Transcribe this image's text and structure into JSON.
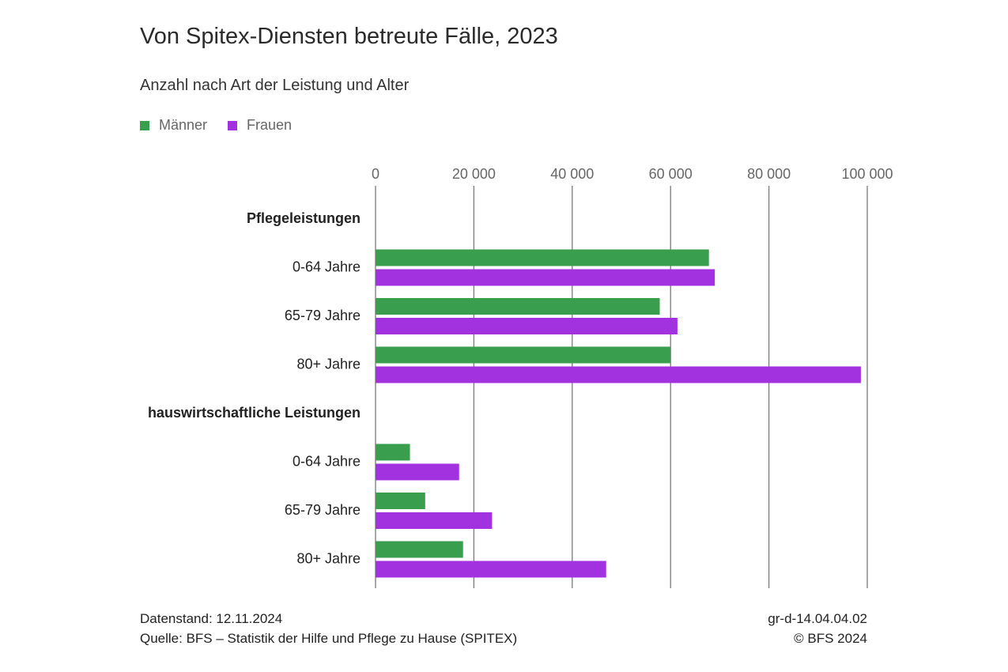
{
  "title": "Von Spitex-Diensten betreute Fälle, 2023",
  "subtitle": "Anzahl nach Art der Leistung und Alter",
  "legend": [
    {
      "label": "Männer",
      "color": "#3a9e4f"
    },
    {
      "label": "Frauen",
      "color": "#a232e0"
    }
  ],
  "footer": {
    "stand": "Datenstand: 12.11.2024",
    "source": "Quelle: BFS – Statistik der Hilfe und Pflege zu Hause (SPITEX)",
    "code": "gr-d-14.04.04.02",
    "copyright": "© BFS 2024"
  },
  "chart_data": {
    "type": "bar",
    "orientation": "horizontal",
    "xlim": [
      0,
      100000
    ],
    "ticks": [
      0,
      20000,
      40000,
      60000,
      80000,
      100000
    ],
    "tick_labels": [
      "0",
      "20 000",
      "40 000",
      "60 000",
      "80 000",
      "100 000"
    ],
    "grid": true,
    "legend_position": "top-left",
    "groups": [
      {
        "label": "Pflegeleistungen",
        "categories": [
          "0-64 Jahre",
          "65-79 Jahre",
          "80+ Jahre"
        ],
        "series": [
          {
            "name": "Männer",
            "values": [
              67800,
              57800,
              60000
            ]
          },
          {
            "name": "Frauen",
            "values": [
              69000,
              61400,
              98700
            ]
          }
        ]
      },
      {
        "label": "hauswirtschaftliche Leistungen",
        "categories": [
          "0-64 Jahre",
          "65-79 Jahre",
          "80+ Jahre"
        ],
        "series": [
          {
            "name": "Männer",
            "values": [
              7000,
              10100,
              17800
            ]
          },
          {
            "name": "Frauen",
            "values": [
              17000,
              23700,
              46900
            ]
          }
        ]
      }
    ]
  }
}
